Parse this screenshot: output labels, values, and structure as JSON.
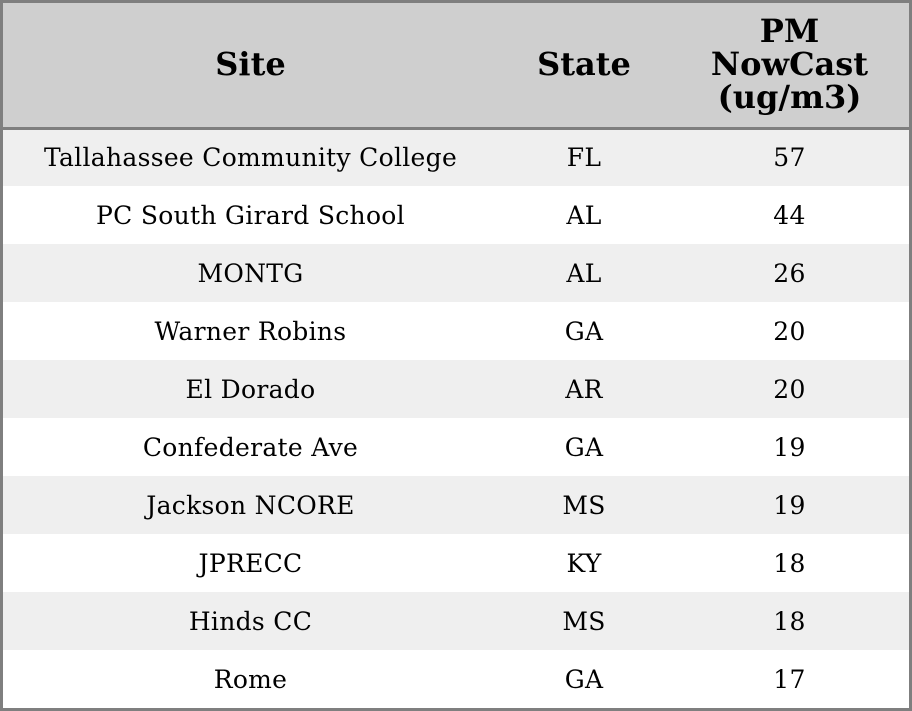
{
  "table": {
    "headers": {
      "site": "Site",
      "state": "State",
      "pm": "PM\nNowCast\n(ug/m3)"
    },
    "rows": [
      {
        "site": "Tallahassee Community College",
        "state": "FL",
        "pm": "57"
      },
      {
        "site": "PC South Girard School",
        "state": "AL",
        "pm": "44"
      },
      {
        "site": "MONTG",
        "state": "AL",
        "pm": "26"
      },
      {
        "site": "Warner Robins",
        "state": "GA",
        "pm": "20"
      },
      {
        "site": "El Dorado",
        "state": "AR",
        "pm": "20"
      },
      {
        "site": "Confederate Ave",
        "state": "GA",
        "pm": "19"
      },
      {
        "site": "Jackson NCORE",
        "state": "MS",
        "pm": "19"
      },
      {
        "site": "JPRECC",
        "state": "KY",
        "pm": "18"
      },
      {
        "site": "Hinds CC",
        "state": "MS",
        "pm": "18"
      },
      {
        "site": "Rome",
        "state": "GA",
        "pm": "17"
      }
    ]
  },
  "colors": {
    "header_bg": "#cfcfcf",
    "row_alt_bg": "#efefef",
    "row_bg": "#ffffff",
    "border": "#7f7f7f"
  }
}
